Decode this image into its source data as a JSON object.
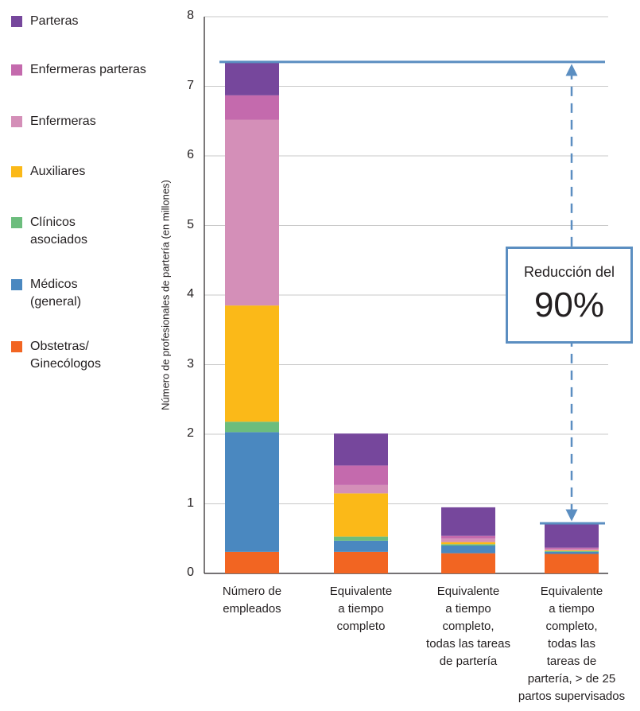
{
  "chart_data": {
    "type": "bar",
    "stacked": true,
    "title": "",
    "xlabel": "",
    "ylabel": "Número de profesionales de partería (en millones)",
    "ylim": [
      0,
      8
    ],
    "yticks": [
      0,
      1,
      2,
      3,
      4,
      5,
      6,
      7,
      8
    ],
    "grid": true,
    "legend_position": "left",
    "categories": [
      "Número de\nempleados",
      "Equivalente\na tiempo\ncompleto",
      "Equivalente\na tiempo\ncompleto,\ntodas las tareas\nde partería",
      "Equivalente\na tiempo\ncompleto,\ntodas las\ntareas de\npartería, > de 25\npartos supervisados"
    ],
    "series": [
      {
        "name": "Obstetras/\nGinecólogos",
        "color": "#f26522",
        "values": [
          0.31,
          0.31,
          0.29,
          0.28
        ]
      },
      {
        "name": "Médicos\n(general)",
        "color": "#4a88c0",
        "values": [
          1.72,
          0.16,
          0.11,
          0.03
        ]
      },
      {
        "name": "Clínicos\nasociados",
        "color": "#6cbd7d",
        "values": [
          0.15,
          0.06,
          0.02,
          0.01
        ]
      },
      {
        "name": "Auxiliares",
        "color": "#fbb918",
        "values": [
          1.67,
          0.62,
          0.03,
          0.01
        ]
      },
      {
        "name": "Enfermeras",
        "color": "#d48fb8",
        "values": [
          2.67,
          0.12,
          0.05,
          0.02
        ]
      },
      {
        "name": "Enfermeras parteras",
        "color": "#c46aad",
        "values": [
          0.35,
          0.28,
          0.04,
          0.02
        ]
      },
      {
        "name": "Parteras",
        "color": "#76479c",
        "values": [
          0.48,
          0.46,
          0.41,
          0.35
        ]
      }
    ],
    "annotation": {
      "top_line_value": 7.35,
      "bottom_line_value": 0.72,
      "line_color": "#5b8ec1",
      "text_line1": "Reducción del",
      "text_line2": "90%"
    }
  }
}
